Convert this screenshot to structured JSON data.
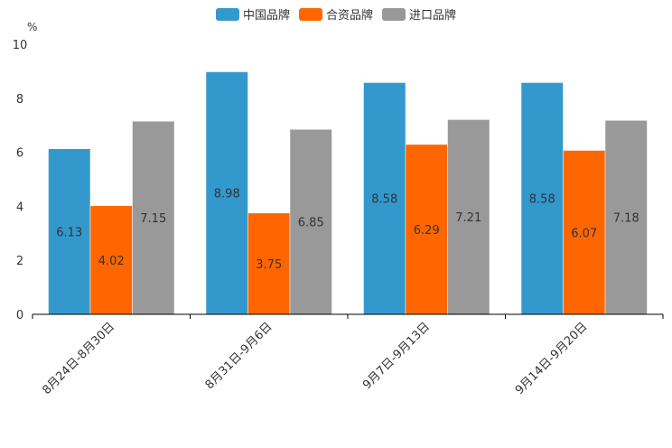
{
  "chart_data": {
    "type": "bar",
    "title": "",
    "xlabel": "",
    "ylabel": "%",
    "ylim": [
      0,
      10
    ],
    "yticks": [
      0,
      2,
      4,
      6,
      8,
      10
    ],
    "grid": false,
    "legend_position": "top-center",
    "categories": [
      "8月24日-8月30日",
      "8月31日-9月6日",
      "9月7日-9月13日",
      "9月14日-9月20日"
    ],
    "series": [
      {
        "name": "中国品牌",
        "color": "#3399CC",
        "values": [
          6.13,
          8.98,
          8.58,
          8.58
        ]
      },
      {
        "name": "合资品牌",
        "color": "#FF6600",
        "values": [
          4.02,
          3.75,
          6.29,
          6.07
        ]
      },
      {
        "name": "进口品牌",
        "color": "#999999",
        "values": [
          7.15,
          6.85,
          7.21,
          7.18
        ]
      }
    ]
  }
}
